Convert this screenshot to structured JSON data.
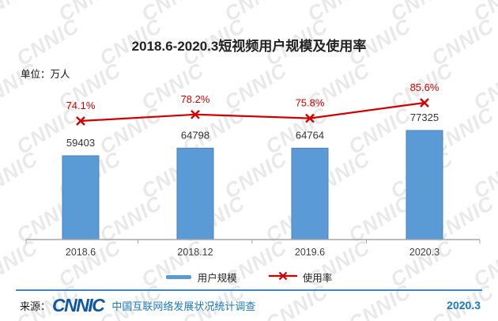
{
  "title": "2018.6-2020.3短视频用户规模及使用率",
  "unit_label": "单位：万人",
  "watermark": {
    "text": "CNNIC"
  },
  "chart_data": {
    "type": "bar+line combo",
    "title": "2018.6-2020.3短视频用户规模及使用率",
    "unit_label": "单位：万人",
    "categories": [
      "2018.6",
      "2018.12",
      "2019.6",
      "2020.3"
    ],
    "series": [
      {
        "name": "用户规模",
        "type": "bar",
        "values": [
          59403,
          64798,
          64764,
          77325
        ],
        "unit": "万人",
        "color": "#5B9BD5",
        "border_color": "#4E81BD",
        "label_color": "#333333"
      },
      {
        "name": "使用率",
        "type": "line",
        "values": [
          74.1,
          78.2,
          75.8,
          85.6
        ],
        "unit": "%",
        "labels": [
          "74.1%",
          "78.2%",
          "75.8%",
          "85.6%"
        ],
        "color": "#D40000",
        "marker": "x"
      }
    ],
    "axis_color": "#A6A6A6",
    "grid": false,
    "legend_position": "bottom"
  },
  "legend": {
    "items": [
      {
        "label": "用户规模",
        "type": "bar",
        "color": "#5B9BD5"
      },
      {
        "label": "使用率",
        "type": "line",
        "color": "#D40000"
      }
    ]
  },
  "footer": {
    "source_prefix": "来源：",
    "logo": "CNNIC",
    "logo_color": "#0E57A8",
    "source_text": "中国互联网络发展状况统计调查",
    "date": "2020.3",
    "accent_color": "#1B7BC4",
    "divider_color": "#3D87CE"
  }
}
